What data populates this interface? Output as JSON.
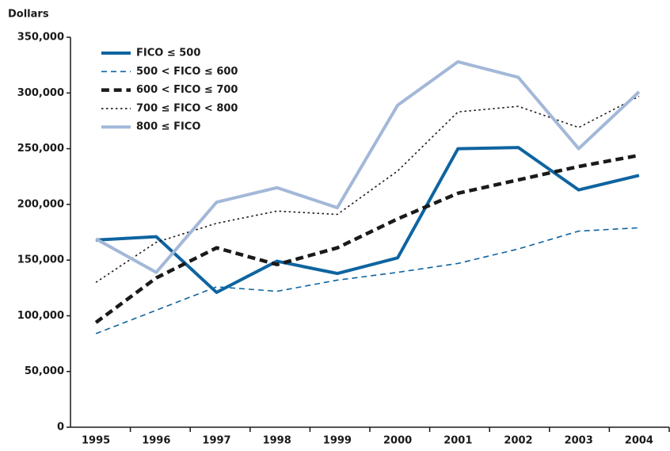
{
  "chart_data": {
    "type": "line",
    "y_label": "Dollars",
    "categories": [
      "1995",
      "1996",
      "1997",
      "1998",
      "1999",
      "2000",
      "2001",
      "2002",
      "2003",
      "2004"
    ],
    "ylim": [
      0,
      350000
    ],
    "yticks": [
      0,
      {
        "value": 50000,
        "label": "50,000"
      },
      {
        "value": 100000,
        "label": "100,000"
      },
      {
        "value": 150000,
        "label": "150,000"
      },
      {
        "value": 200000,
        "label": "200,000"
      },
      {
        "value": 250000,
        "label": "250,000"
      },
      {
        "value": 300000,
        "label": "300,000"
      },
      {
        "value": 350000,
        "label": "350,000"
      }
    ],
    "grid": false,
    "legend": "upper left",
    "series": [
      {
        "name": "FICO ≤ 500",
        "color": "#0e64a0",
        "style": "solid",
        "linewidth": 4,
        "values": [
          168000,
          171000,
          121000,
          149000,
          138000,
          152000,
          250000,
          251000,
          213000,
          226000
        ]
      },
      {
        "name": "500 < FICO ≤ 600",
        "color": "#0e64a0",
        "style": "dashed",
        "linewidth": 1.6,
        "values": [
          84000,
          105000,
          126000,
          122000,
          132000,
          139000,
          147000,
          160000,
          176000,
          179000
        ]
      },
      {
        "name": "600 < FICO ≤ 700",
        "color": "#1a1a1a",
        "style": "dashed",
        "linewidth": 4.5,
        "values": [
          94000,
          134000,
          161000,
          146000,
          161000,
          187000,
          210000,
          222000,
          234000,
          244000
        ]
      },
      {
        "name": "700 ≤ FICO < 800",
        "color": "#1a1a1a",
        "style": "dotted",
        "linewidth": 1.6,
        "values": [
          130000,
          166000,
          183000,
          194000,
          191000,
          230000,
          283000,
          288000,
          269000,
          297000
        ]
      },
      {
        "name": "800 ≤ FICO",
        "color": "#a3b8d8",
        "style": "solid",
        "linewidth": 4,
        "values": [
          169000,
          139000,
          202000,
          215000,
          197000,
          289000,
          328000,
          314000,
          250000,
          301000
        ]
      }
    ]
  }
}
